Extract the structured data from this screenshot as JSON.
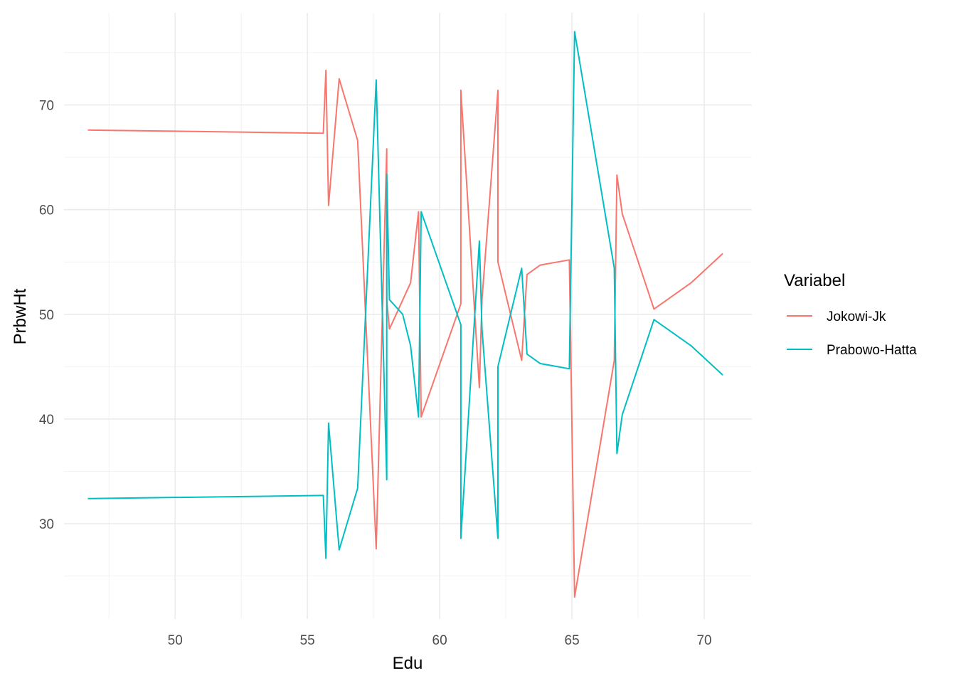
{
  "chart_data": {
    "type": "line",
    "xlabel": "Edu",
    "ylabel": "PrbwHt",
    "xlim": [
      45.8,
      71.8
    ],
    "ylim": [
      20.9,
      78.8
    ],
    "x_ticks": [
      50,
      55,
      60,
      65,
      70
    ],
    "y_ticks": [
      30,
      40,
      50,
      60,
      70
    ],
    "grid": true,
    "legend": {
      "title": "Variabel",
      "position": "right"
    },
    "series": [
      {
        "name": "Jokowi-Jk",
        "color": "#F8766D",
        "points": [
          [
            46.7,
            67.6
          ],
          [
            55.6,
            67.3
          ],
          [
            55.7,
            73.3
          ],
          [
            55.8,
            60.4
          ],
          [
            56.2,
            72.5
          ],
          [
            56.9,
            66.6
          ],
          [
            57.6,
            27.6
          ],
          [
            58.0,
            65.8
          ],
          [
            58.0,
            51.4
          ],
          [
            58.1,
            48.6
          ],
          [
            58.9,
            53.0
          ],
          [
            59.2,
            59.8
          ],
          [
            59.3,
            40.2
          ],
          [
            60.8,
            51.0
          ],
          [
            60.8,
            71.4
          ],
          [
            61.5,
            43.0
          ],
          [
            61.6,
            51.4
          ],
          [
            62.2,
            71.4
          ],
          [
            62.2,
            55.0
          ],
          [
            63.1,
            45.6
          ],
          [
            63.3,
            53.8
          ],
          [
            63.8,
            54.7
          ],
          [
            64.9,
            55.2
          ],
          [
            65.1,
            23.0
          ],
          [
            66.6,
            45.6
          ],
          [
            66.7,
            63.3
          ],
          [
            66.9,
            59.6
          ],
          [
            68.1,
            50.5
          ],
          [
            69.5,
            53.0
          ],
          [
            70.7,
            55.8
          ]
        ]
      },
      {
        "name": "Prabowo-Hatta",
        "color": "#00BFC4",
        "points": [
          [
            46.7,
            32.4
          ],
          [
            55.6,
            32.7
          ],
          [
            55.7,
            26.7
          ],
          [
            55.8,
            39.6
          ],
          [
            56.2,
            27.5
          ],
          [
            56.9,
            33.4
          ],
          [
            57.6,
            72.4
          ],
          [
            58.0,
            34.2
          ],
          [
            58.0,
            63.4
          ],
          [
            58.1,
            51.4
          ],
          [
            58.6,
            50.0
          ],
          [
            58.9,
            47.0
          ],
          [
            59.2,
            40.2
          ],
          [
            59.3,
            59.8
          ],
          [
            60.8,
            49.0
          ],
          [
            60.8,
            28.6
          ],
          [
            61.5,
            57.0
          ],
          [
            61.6,
            48.6
          ],
          [
            62.2,
            28.6
          ],
          [
            62.2,
            45.0
          ],
          [
            63.1,
            54.4
          ],
          [
            63.3,
            46.2
          ],
          [
            63.8,
            45.3
          ],
          [
            64.9,
            44.8
          ],
          [
            65.1,
            77.0
          ],
          [
            66.6,
            54.4
          ],
          [
            66.7,
            36.7
          ],
          [
            66.9,
            40.4
          ],
          [
            68.1,
            49.5
          ],
          [
            69.5,
            47.0
          ],
          [
            70.7,
            44.2
          ]
        ]
      }
    ]
  }
}
